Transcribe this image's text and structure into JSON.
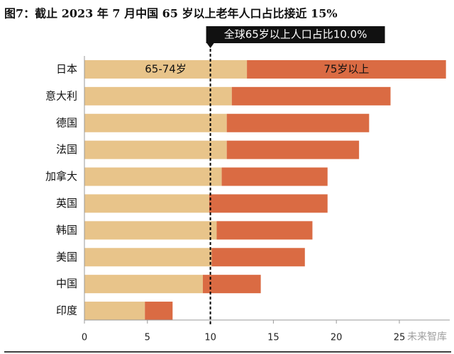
{
  "chart_data": {
    "type": "stacked_barh",
    "title": "图7：截止 2023 年 7 月中国 65 岁以上老年人口占比接近 15%",
    "categories": [
      "日本",
      "意大利",
      "德国",
      "法国",
      "加拿大",
      "英国",
      "韩国",
      "美国",
      "中国",
      "印度"
    ],
    "series": [
      {
        "name": "65-74岁",
        "color": "#E8C48A",
        "values": [
          12.9,
          11.7,
          11.3,
          11.3,
          10.9,
          9.9,
          10.5,
          10.1,
          9.4,
          4.8
        ]
      },
      {
        "name": "75岁以上",
        "color": "#DA6B43",
        "values": [
          15.8,
          12.6,
          11.3,
          10.5,
          8.4,
          9.4,
          7.6,
          7.4,
          4.6,
          2.2
        ]
      }
    ],
    "xlim": [
      0,
      29
    ],
    "xticks": [
      0,
      5,
      10,
      15,
      20,
      25
    ],
    "reference": {
      "value": 10.0,
      "label": "全球65岁以上人口占比10.0%"
    },
    "watermark": "未来智库"
  }
}
